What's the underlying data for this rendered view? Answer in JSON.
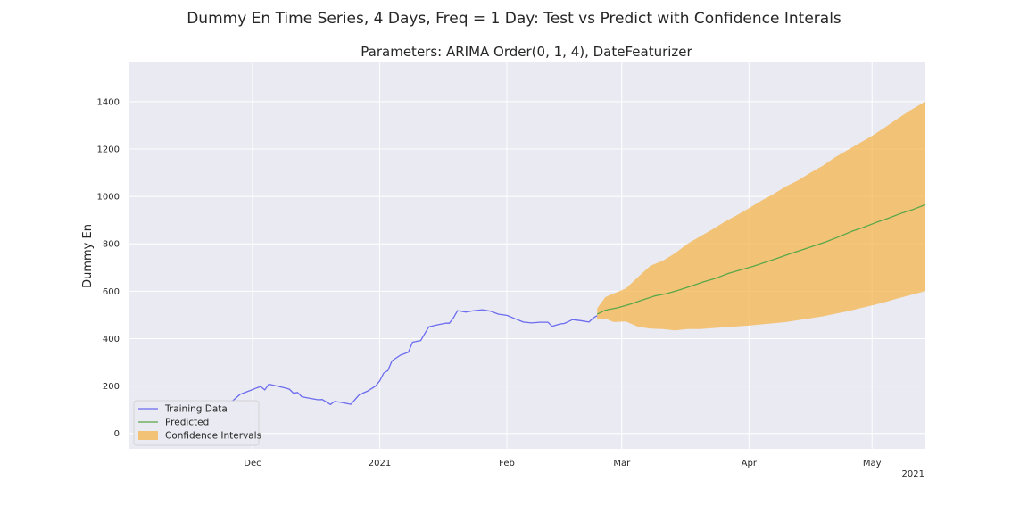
{
  "chart_data": {
    "type": "line",
    "title": "Dummy En Time Series, 4 Days, Freq = 1 Day: Test vs Predict with Confidence Interals",
    "subtitle": "Parameters: ARIMA Order(0, 1, 4), DateFeaturizer",
    "ylabel": "Dummy En",
    "xlabel": "",
    "x_offset_label": "2021",
    "xlim": [
      "2020-11-01",
      "2021-05-14"
    ],
    "ylim": [
      -65,
      1565
    ],
    "grid": true,
    "legend_position": "lower-left",
    "x_ticks": [
      {
        "date": "2020-12-01",
        "label": "Dec"
      },
      {
        "date": "2021-01-01",
        "label": "2021"
      },
      {
        "date": "2021-02-01",
        "label": "Feb"
      },
      {
        "date": "2021-03-01",
        "label": "Mar"
      },
      {
        "date": "2021-04-01",
        "label": "Apr"
      },
      {
        "date": "2021-05-01",
        "label": "May"
      }
    ],
    "y_ticks": [
      0,
      200,
      400,
      600,
      800,
      1000,
      1200,
      1400
    ],
    "series": [
      {
        "name": "Training Data",
        "kind": "line",
        "color": "#6b6bf0",
        "points": [
          [
            "2020-11-26",
            135
          ],
          [
            "2020-11-28",
            165
          ],
          [
            "2020-11-30",
            178
          ],
          [
            "2020-12-01",
            185
          ],
          [
            "2020-12-02",
            192
          ],
          [
            "2020-12-03",
            198
          ],
          [
            "2020-12-04",
            184
          ],
          [
            "2020-12-05",
            208
          ],
          [
            "2020-12-07",
            200
          ],
          [
            "2020-12-09",
            192
          ],
          [
            "2020-12-10",
            187
          ],
          [
            "2020-12-11",
            170
          ],
          [
            "2020-12-12",
            173
          ],
          [
            "2020-12-13",
            155
          ],
          [
            "2020-12-15",
            148
          ],
          [
            "2020-12-17",
            142
          ],
          [
            "2020-12-18",
            143
          ],
          [
            "2020-12-19",
            133
          ],
          [
            "2020-12-20",
            122
          ],
          [
            "2020-12-21",
            135
          ],
          [
            "2020-12-23",
            130
          ],
          [
            "2020-12-25",
            123
          ],
          [
            "2020-12-27",
            163
          ],
          [
            "2020-12-29",
            178
          ],
          [
            "2020-12-31",
            200
          ],
          [
            "2021-01-01",
            222
          ],
          [
            "2021-01-02",
            255
          ],
          [
            "2021-01-03",
            265
          ],
          [
            "2021-01-04",
            306
          ],
          [
            "2021-01-06",
            330
          ],
          [
            "2021-01-08",
            343
          ],
          [
            "2021-01-09",
            385
          ],
          [
            "2021-01-11",
            392
          ],
          [
            "2021-01-13",
            450
          ],
          [
            "2021-01-15",
            458
          ],
          [
            "2021-01-17",
            465
          ],
          [
            "2021-01-18",
            465
          ],
          [
            "2021-01-19",
            488
          ],
          [
            "2021-01-20",
            518
          ],
          [
            "2021-01-22",
            512
          ],
          [
            "2021-01-24",
            518
          ],
          [
            "2021-01-26",
            522
          ],
          [
            "2021-01-28",
            516
          ],
          [
            "2021-01-30",
            503
          ],
          [
            "2021-02-01",
            498
          ],
          [
            "2021-02-03",
            484
          ],
          [
            "2021-02-05",
            470
          ],
          [
            "2021-02-07",
            466
          ],
          [
            "2021-02-09",
            469
          ],
          [
            "2021-02-11",
            469
          ],
          [
            "2021-02-12",
            452
          ],
          [
            "2021-02-14",
            462
          ],
          [
            "2021-02-15",
            464
          ],
          [
            "2021-02-17",
            480
          ],
          [
            "2021-02-19",
            476
          ],
          [
            "2021-02-21",
            470
          ],
          [
            "2021-02-22",
            486
          ],
          [
            "2021-02-23",
            497
          ]
        ]
      },
      {
        "name": "Predicted",
        "kind": "line",
        "color": "#5aa84a",
        "points": [
          [
            "2021-02-23",
            503
          ],
          [
            "2021-02-25",
            520
          ],
          [
            "2021-02-28",
            530
          ],
          [
            "2021-03-03",
            545
          ],
          [
            "2021-03-06",
            563
          ],
          [
            "2021-03-09",
            580
          ],
          [
            "2021-03-12",
            590
          ],
          [
            "2021-03-15",
            605
          ],
          [
            "2021-03-18",
            622
          ],
          [
            "2021-03-21",
            640
          ],
          [
            "2021-03-24",
            655
          ],
          [
            "2021-03-27",
            675
          ],
          [
            "2021-03-30",
            690
          ],
          [
            "2021-04-02",
            705
          ],
          [
            "2021-04-05",
            722
          ],
          [
            "2021-04-08",
            740
          ],
          [
            "2021-04-11",
            758
          ],
          [
            "2021-04-14",
            775
          ],
          [
            "2021-04-17",
            792
          ],
          [
            "2021-04-20",
            810
          ],
          [
            "2021-04-23",
            830
          ],
          [
            "2021-04-26",
            852
          ],
          [
            "2021-04-29",
            870
          ],
          [
            "2021-05-02",
            890
          ],
          [
            "2021-05-05",
            908
          ],
          [
            "2021-05-08",
            928
          ],
          [
            "2021-05-11",
            945
          ],
          [
            "2021-05-14",
            965
          ]
        ]
      }
    ],
    "confidence_interval": {
      "name": "Confidence Intervals",
      "color": "#f5b041",
      "points": [
        [
          "2021-02-23",
          480,
          528
        ],
        [
          "2021-02-25",
          485,
          575
        ],
        [
          "2021-02-27",
          470,
          590
        ],
        [
          "2021-03-02",
          472,
          612
        ],
        [
          "2021-03-05",
          450,
          660
        ],
        [
          "2021-03-08",
          442,
          708
        ],
        [
          "2021-03-11",
          440,
          728
        ],
        [
          "2021-03-14",
          435,
          760
        ],
        [
          "2021-03-17",
          440,
          800
        ],
        [
          "2021-03-20",
          440,
          830
        ],
        [
          "2021-03-23",
          444,
          860
        ],
        [
          "2021-03-26",
          448,
          892
        ],
        [
          "2021-03-29",
          452,
          920
        ],
        [
          "2021-04-01",
          455,
          950
        ],
        [
          "2021-04-04",
          460,
          982
        ],
        [
          "2021-04-07",
          465,
          1010
        ],
        [
          "2021-04-10",
          470,
          1042
        ],
        [
          "2021-04-13",
          478,
          1068
        ],
        [
          "2021-04-16",
          486,
          1100
        ],
        [
          "2021-04-19",
          494,
          1130
        ],
        [
          "2021-04-22",
          505,
          1165
        ],
        [
          "2021-04-25",
          515,
          1195
        ],
        [
          "2021-04-28",
          528,
          1225
        ],
        [
          "2021-05-01",
          540,
          1255
        ],
        [
          "2021-05-04",
          553,
          1290
        ],
        [
          "2021-05-07",
          568,
          1325
        ],
        [
          "2021-05-10",
          582,
          1360
        ],
        [
          "2021-05-14",
          600,
          1400
        ]
      ]
    }
  }
}
